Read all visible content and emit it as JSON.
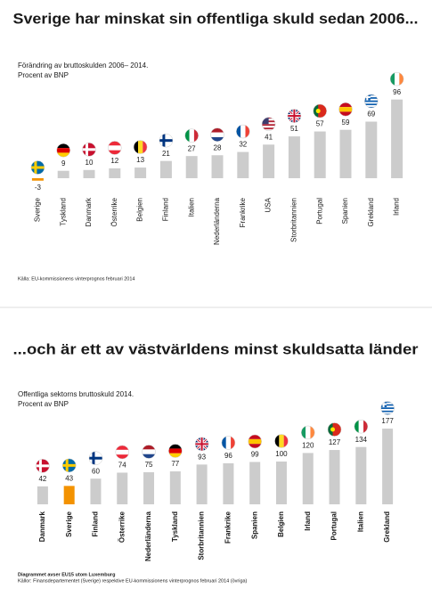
{
  "chart_data": [
    {
      "type": "bar",
      "title": "Sverige har minskat sin offentliga skuld sedan 2006...",
      "subtitle": [
        "Förändring av bruttoskulden 2006– 2014.",
        "Procent av BNP"
      ],
      "categories": [
        "Sverige",
        "Tyskland",
        "Danmark",
        "Österrike",
        "Belgien",
        "Finland",
        "Italien",
        "Nederländerna",
        "Frankrike",
        "USA",
        "Storbritannien",
        "Portugal",
        "Spanien",
        "Grekland",
        "Irland"
      ],
      "values": [
        -3,
        9,
        10,
        12,
        13,
        21,
        27,
        28,
        32,
        41,
        51,
        57,
        59,
        69,
        96
      ],
      "colors": [
        "#f39200",
        "#cccccc",
        "#cccccc",
        "#cccccc",
        "#cccccc",
        "#cccccc",
        "#cccccc",
        "#cccccc",
        "#cccccc",
        "#cccccc",
        "#cccccc",
        "#cccccc",
        "#cccccc",
        "#cccccc",
        "#cccccc"
      ],
      "notes": [
        "Källa: EU-kommissionens vinterprognos februari 2014"
      ]
    },
    {
      "type": "bar",
      "title": "...och är ett av västvärldens minst skuldsatta länder",
      "subtitle": [
        "Offentliga sektorns bruttoskuld 2014.",
        "Procent av BNP"
      ],
      "categories": [
        "Danmark",
        "Sverige",
        "Finland",
        "Österrike",
        "Nederländerna",
        "Tyskland",
        "Storbritannien",
        "Frankrike",
        "Spanien",
        "Belgien",
        "Irland",
        "Portugal",
        "Italien",
        "Grekland"
      ],
      "values": [
        42,
        43,
        60,
        74,
        75,
        77,
        93,
        96,
        99,
        100,
        120,
        127,
        134,
        177
      ],
      "colors": [
        "#cccccc",
        "#f39200",
        "#cccccc",
        "#cccccc",
        "#cccccc",
        "#cccccc",
        "#cccccc",
        "#cccccc",
        "#cccccc",
        "#cccccc",
        "#cccccc",
        "#cccccc",
        "#cccccc",
        "#cccccc"
      ],
      "notes": [
        "Diagrammet avser EU15 utom Luxemburg",
        "Källor: Finansdepartementet (Sverige) respektive EU-kommissionens vinterprognos februari 2014 (övriga)"
      ]
    }
  ]
}
